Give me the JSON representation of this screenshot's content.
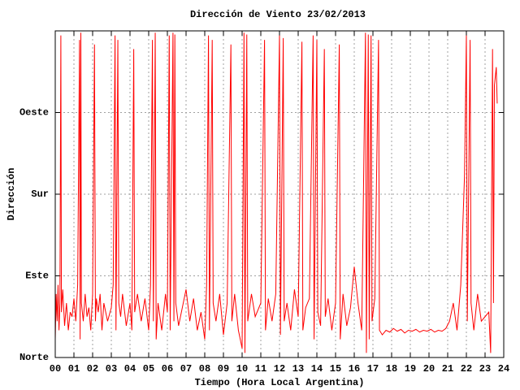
{
  "chart_data": {
    "type": "line",
    "title": "Dirección de Viento 23/02/2013",
    "xlabel": "Tiempo (Hora Local Argentina)",
    "ylabel": "Dirección",
    "xlim": [
      0,
      24
    ],
    "ylim": [
      0,
      360
    ],
    "xticks": [
      {
        "value": 0,
        "label": "00"
      },
      {
        "value": 1,
        "label": "01"
      },
      {
        "value": 2,
        "label": "02"
      },
      {
        "value": 3,
        "label": "03"
      },
      {
        "value": 4,
        "label": "04"
      },
      {
        "value": 5,
        "label": "05"
      },
      {
        "value": 6,
        "label": "06"
      },
      {
        "value": 7,
        "label": "07"
      },
      {
        "value": 8,
        "label": "08"
      },
      {
        "value": 9,
        "label": "09"
      },
      {
        "value": 10,
        "label": "10"
      },
      {
        "value": 11,
        "label": "11"
      },
      {
        "value": 12,
        "label": "12"
      },
      {
        "value": 13,
        "label": "13"
      },
      {
        "value": 14,
        "label": "14"
      },
      {
        "value": 15,
        "label": "15"
      },
      {
        "value": 16,
        "label": "16"
      },
      {
        "value": 17,
        "label": "17"
      },
      {
        "value": 18,
        "label": "18"
      },
      {
        "value": 19,
        "label": "19"
      },
      {
        "value": 20,
        "label": "20"
      },
      {
        "value": 21,
        "label": "21"
      },
      {
        "value": 22,
        "label": "22"
      },
      {
        "value": 23,
        "label": "23"
      },
      {
        "value": 24,
        "label": "24"
      }
    ],
    "yticks": [
      {
        "value": 0,
        "label": "Norte"
      },
      {
        "value": 90,
        "label": "Este"
      },
      {
        "value": 180,
        "label": "Sur"
      },
      {
        "value": 270,
        "label": "Oeste"
      }
    ],
    "grid": true,
    "color": "#ff0000",
    "x": [
      0,
      0.05,
      0.1,
      0.15,
      0.2,
      0.25,
      0.3,
      0.33,
      0.4,
      0.5,
      0.6,
      0.7,
      0.8,
      0.9,
      1.0,
      1.1,
      1.2,
      1.3,
      1.33,
      1.37,
      1.4,
      1.5,
      1.6,
      1.7,
      1.8,
      1.9,
      2.0,
      2.1,
      2.15,
      2.2,
      2.3,
      2.4,
      2.5,
      2.6,
      2.8,
      3.0,
      3.1,
      3.2,
      3.25,
      3.35,
      3.4,
      3.5,
      3.6,
      3.8,
      4.0,
      4.1,
      4.2,
      4.25,
      4.4,
      4.6,
      4.8,
      5.0,
      5.1,
      5.2,
      5.25,
      5.35,
      5.4,
      5.5,
      5.7,
      5.9,
      6.0,
      6.1,
      6.15,
      6.3,
      6.35,
      6.4,
      6.45,
      6.6,
      6.8,
      7.0,
      7.2,
      7.4,
      7.6,
      7.8,
      8.0,
      8.1,
      8.2,
      8.25,
      8.4,
      8.45,
      8.6,
      8.8,
      9.0,
      9.2,
      9.4,
      9.45,
      9.6,
      9.8,
      10.0,
      10.1,
      10.15,
      10.25,
      10.3,
      10.5,
      10.7,
      11.0,
      11.2,
      11.25,
      11.4,
      11.6,
      11.8,
      12.0,
      12.05,
      12.2,
      12.25,
      12.4,
      12.6,
      12.8,
      13.0,
      13.2,
      13.25,
      13.4,
      13.6,
      13.8,
      13.85,
      14.0,
      14.05,
      14.2,
      14.4,
      14.45,
      14.6,
      14.8,
      15.0,
      15.2,
      15.25,
      15.4,
      15.6,
      15.8,
      16.0,
      16.2,
      16.4,
      16.6,
      16.65,
      16.75,
      16.8,
      16.9,
      16.95,
      17.1,
      17.3,
      17.35,
      17.5,
      17.7,
      17.9,
      18.1,
      18.3,
      18.5,
      18.7,
      18.9,
      19.1,
      19.3,
      19.5,
      19.7,
      19.9,
      20.1,
      20.3,
      20.5,
      20.7,
      20.9,
      21.1,
      21.3,
      21.5,
      21.7,
      21.9,
      22.0,
      22.05,
      22.2,
      22.25,
      22.4,
      22.6,
      22.8,
      23.0,
      23.2,
      23.3,
      23.4,
      23.45,
      23.5,
      23.6,
      23.65
    ],
    "values": [
      20,
      70,
      40,
      80,
      30,
      60,
      355,
      50,
      75,
      35,
      60,
      30,
      50,
      45,
      65,
      40,
      80,
      350,
      20,
      358,
      60,
      40,
      70,
      45,
      55,
      30,
      70,
      345,
      40,
      65,
      50,
      70,
      30,
      60,
      40,
      55,
      80,
      355,
      30,
      350,
      60,
      45,
      70,
      35,
      60,
      30,
      340,
      50,
      70,
      40,
      65,
      30,
      80,
      350,
      40,
      358,
      20,
      60,
      30,
      70,
      50,
      355,
      30,
      358,
      40,
      356,
      60,
      35,
      55,
      75,
      40,
      65,
      30,
      50,
      20,
      80,
      355,
      30,
      350,
      60,
      40,
      70,
      25,
      60,
      345,
      40,
      70,
      30,
      10,
      358,
      5,
      356,
      40,
      70,
      45,
      60,
      350,
      30,
      65,
      40,
      70,
      355,
      25,
      352,
      40,
      60,
      30,
      75,
      45,
      348,
      30,
      55,
      65,
      355,
      20,
      350,
      50,
      35,
      340,
      45,
      65,
      30,
      60,
      345,
      20,
      70,
      35,
      55,
      100,
      60,
      30,
      358,
      5,
      356,
      20,
      355,
      40,
      65,
      350,
      30,
      25,
      30,
      28,
      32,
      29,
      31,
      27,
      30,
      29,
      31,
      28,
      30,
      29,
      31,
      28,
      30,
      29,
      32,
      40,
      60,
      30,
      80,
      200,
      355,
      40,
      350,
      60,
      30,
      70,
      40,
      45,
      50,
      5,
      340,
      60,
      300,
      320,
      280
    ]
  }
}
